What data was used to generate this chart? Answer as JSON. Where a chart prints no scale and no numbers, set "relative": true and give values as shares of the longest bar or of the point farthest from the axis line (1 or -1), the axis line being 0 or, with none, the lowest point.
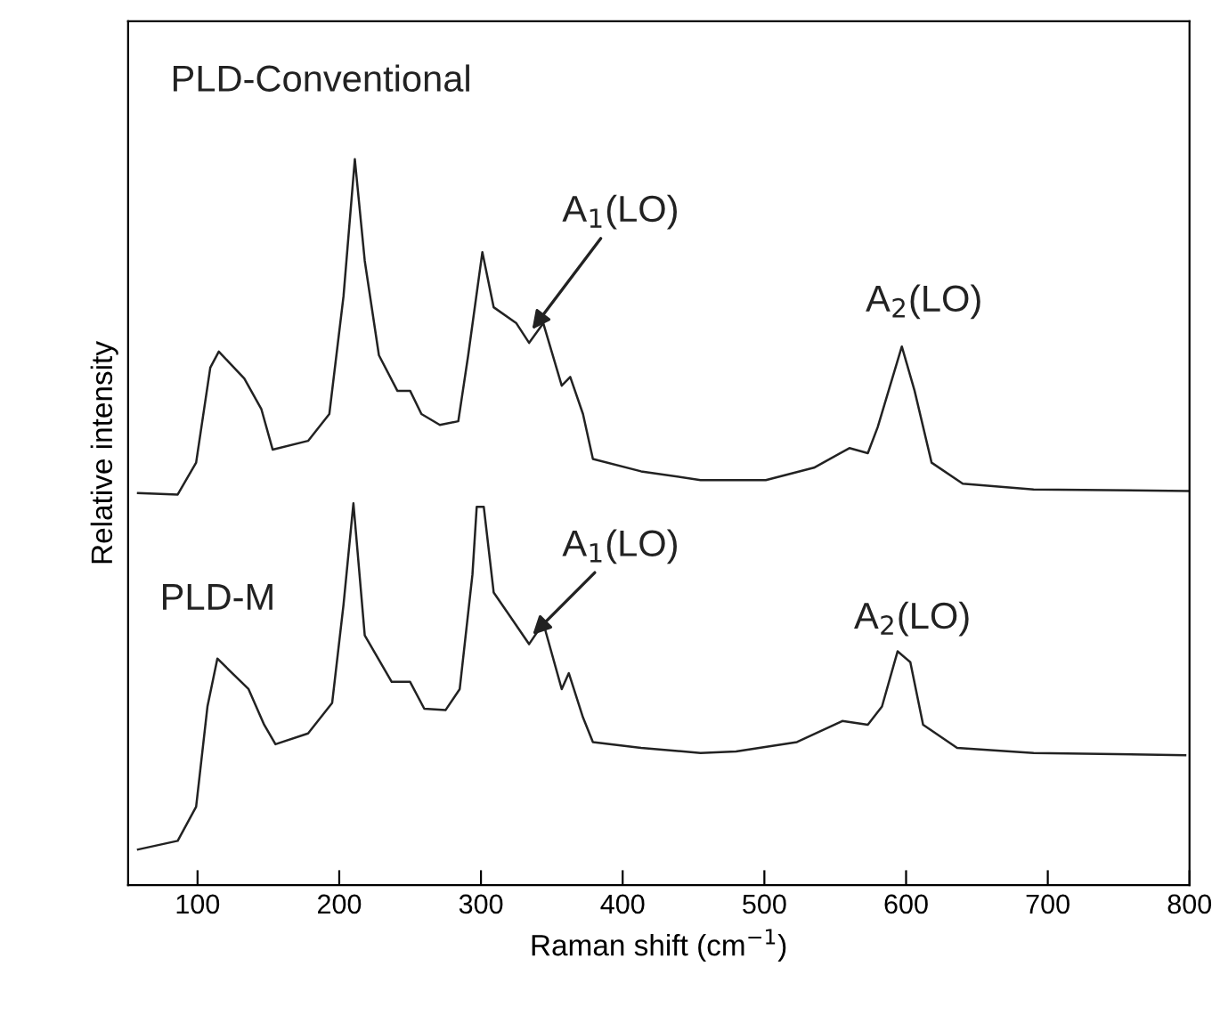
{
  "chart_data": {
    "type": "line",
    "relative": true,
    "xlabel": "Raman shift (cm$^{−1}$)",
    "ylabel": "Relative intensity",
    "xlim": [
      51,
      800
    ],
    "xticks": [
      100,
      200,
      300,
      400,
      500,
      600,
      700,
      800
    ],
    "tick_labels": "x",
    "grid": false,
    "legend": false,
    "series": [
      {
        "name": "PLD-Conventional",
        "color": "#222222",
        "x": [
          58,
          86,
          99,
          109,
          115,
          133,
          145,
          153,
          178,
          193,
          203,
          211,
          218,
          228,
          241,
          250,
          258,
          271,
          284,
          291,
          301,
          309,
          325,
          334,
          344,
          357,
          363,
          372,
          379,
          413,
          455,
          501,
          535,
          560,
          573,
          580,
          597,
          606,
          618,
          640,
          690,
          799
        ],
        "values": [
          0.54,
          0.538,
          0.582,
          0.713,
          0.735,
          0.698,
          0.656,
          0.6,
          0.612,
          0.649,
          0.811,
          1.0,
          0.86,
          0.73,
          0.681,
          0.681,
          0.649,
          0.634,
          0.639,
          0.73,
          0.872,
          0.796,
          0.774,
          0.747,
          0.774,
          0.688,
          0.7,
          0.649,
          0.587,
          0.57,
          0.558,
          0.558,
          0.575,
          0.602,
          0.595,
          0.631,
          0.742,
          0.681,
          0.582,
          0.553,
          0.545,
          0.543
        ]
      },
      {
        "name": "PLD-M",
        "color": "#222222",
        "x": [
          58,
          86,
          99,
          107,
          114,
          136,
          147,
          155,
          178,
          195,
          203,
          210,
          218,
          237,
          250,
          260,
          275,
          285,
          294,
          297,
          302,
          309,
          321,
          334,
          344,
          357,
          362,
          372,
          379,
          413,
          455,
          480,
          523,
          555,
          573,
          583,
          594,
          603,
          612,
          636,
          690,
          797
        ],
        "values": [
          0.049,
          0.061,
          0.108,
          0.246,
          0.312,
          0.27,
          0.221,
          0.194,
          0.209,
          0.251,
          0.386,
          0.526,
          0.344,
          0.28,
          0.28,
          0.243,
          0.241,
          0.27,
          0.428,
          0.521,
          0.521,
          0.403,
          0.369,
          0.332,
          0.361,
          0.27,
          0.292,
          0.231,
          0.197,
          0.189,
          0.182,
          0.184,
          0.197,
          0.226,
          0.221,
          0.246,
          0.322,
          0.307,
          0.221,
          0.189,
          0.182,
          0.179
        ]
      }
    ],
    "annotations": [
      {
        "text": "A$_{1}$(LO)",
        "x": 334,
        "y": 0.76
      },
      {
        "text": "A$_{2}$(LO)",
        "x": 597,
        "y": 0.742
      },
      {
        "text": "A$_{1}$(LO)",
        "x": 334,
        "y": 0.34
      },
      {
        "text": "A$_{2}$(LO)",
        "x": 594,
        "y": 0.322
      }
    ]
  }
}
